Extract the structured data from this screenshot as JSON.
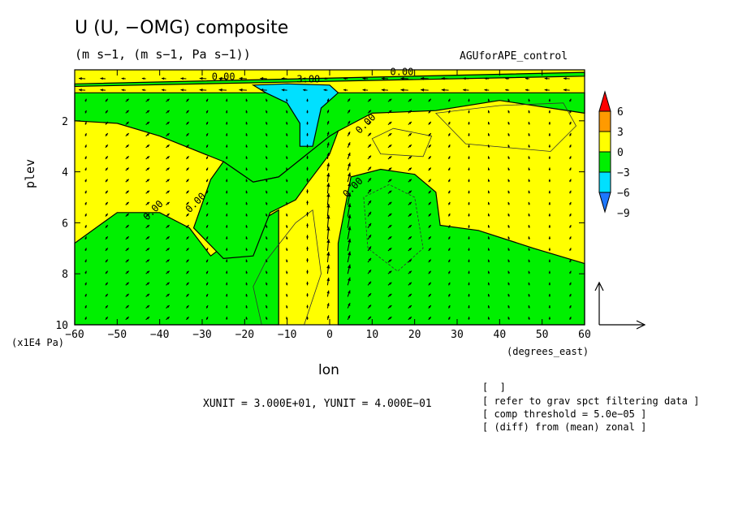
{
  "title": "U (U, −OMG) composite",
  "subtitle": "(m s−1, (m s−1, Pa s−1))",
  "run_label": "AGUforAPE_control",
  "unit_line": "XUNIT = 3.000E+01, YUNIT = 4.000E−01",
  "notes": [
    "[  ]",
    "[ refer to grav spct filtering data ]",
    "[ comp threshold = 5.0e−05 ]",
    "[ (diff) from (mean) zonal ]"
  ],
  "colors": {
    "neg9": "#1e78ff",
    "neg6": "#00e0ff",
    "neg3": "#00f000",
    "zero": "#ffff00",
    "pos3": "#ff9a00",
    "pos6": "#ff0000"
  },
  "chart_data": {
    "type": "contour",
    "xlabel": "lon",
    "xunit": "(degrees_east)",
    "ylabel": "plev",
    "yunit": "(x1E4 Pa)",
    "xlim": [
      -60,
      60
    ],
    "ylim": [
      10,
      0
    ],
    "xticks": [
      -60,
      -50,
      -40,
      -30,
      -20,
      -10,
      0,
      10,
      20,
      30,
      40,
      50,
      60
    ],
    "yticks": [
      2,
      4,
      6,
      8,
      10
    ],
    "contour_labels": [
      {
        "text": "0.00",
        "lon": -25,
        "plev": 0.4
      },
      {
        "text": "0.00",
        "lon": 17,
        "plev": 0.2
      },
      {
        "text": "3.00",
        "lon": -5,
        "plev": 0.5
      },
      {
        "text": "0.00",
        "lon": 9,
        "plev": 2.2
      },
      {
        "text": "0.00",
        "lon": 6,
        "plev": 4.7
      },
      {
        "text": "0.00",
        "lon": -31,
        "plev": 5.3
      },
      {
        "text": "0.00",
        "lon": -41,
        "plev": 5.6
      }
    ],
    "colorbar": {
      "levels": [
        "6",
        "3",
        "0",
        "−3",
        "−6",
        "−9"
      ]
    },
    "regions": {
      "yellow_upper": [
        [
          -60,
          0
        ],
        [
          60,
          0
        ],
        [
          60,
          0.9
        ],
        [
          -60,
          0.9
        ]
      ],
      "green_top_band": [
        [
          -60,
          0.55
        ],
        [
          60,
          0.1
        ],
        [
          60,
          0.25
        ],
        [
          -60,
          0.65
        ]
      ],
      "green_main": [
        [
          -60,
          0.9
        ],
        [
          60,
          0.9
        ],
        [
          60,
          1.7
        ],
        [
          40,
          1.2
        ],
        [
          25,
          1.6
        ],
        [
          10,
          1.7
        ],
        [
          2,
          2.4
        ],
        [
          -12,
          4.2
        ],
        [
          -18,
          4.4
        ],
        [
          -25,
          3.6
        ],
        [
          -40,
          2.6
        ],
        [
          -50,
          2.1
        ],
        [
          -60,
          2.0
        ]
      ],
      "green_left_bottom": [
        [
          -60,
          6.8
        ],
        [
          -50,
          5.6
        ],
        [
          -40,
          5.6
        ],
        [
          -33,
          6.2
        ],
        [
          -28,
          7.3
        ],
        [
          -20,
          6.3
        ],
        [
          -12,
          5.5
        ],
        [
          -12,
          10
        ],
        [
          -60,
          10
        ]
      ],
      "green_mid": [
        [
          -12,
          4.2
        ],
        [
          0,
          2.6
        ],
        [
          2,
          2.4
        ],
        [
          0,
          3.3
        ],
        [
          -5,
          4.4
        ],
        [
          -8,
          5.1
        ],
        [
          -14,
          5.6
        ],
        [
          -18,
          7.3
        ],
        [
          -25,
          7.4
        ],
        [
          -32,
          6.2
        ],
        [
          -28,
          4.3
        ],
        [
          -25,
          3.6
        ],
        [
          -18,
          4.4
        ]
      ],
      "green_right_bottom": [
        [
          2,
          10
        ],
        [
          2,
          6.8
        ],
        [
          5,
          4.2
        ],
        [
          12,
          3.9
        ],
        [
          20,
          4.1
        ],
        [
          25,
          4.8
        ],
        [
          26,
          6.1
        ],
        [
          35,
          6.3
        ],
        [
          48,
          7.0
        ],
        [
          60,
          7.6
        ],
        [
          60,
          10
        ]
      ],
      "cyan": [
        [
          -18,
          0.6
        ],
        [
          -10,
          0.55
        ],
        [
          0,
          0.6
        ],
        [
          2,
          0.9
        ],
        [
          -2,
          1.5
        ],
        [
          -4,
          3.0
        ],
        [
          -7,
          3.0
        ],
        [
          -7,
          2.1
        ],
        [
          -10,
          1.3
        ],
        [
          -15,
          0.9
        ]
      ]
    },
    "wind_vectors": {
      "description": "vector field with strong upward arrows near lon 0 to 5 between plev 4 and 9",
      "xunit": 30.0,
      "yunit": 0.4
    }
  }
}
